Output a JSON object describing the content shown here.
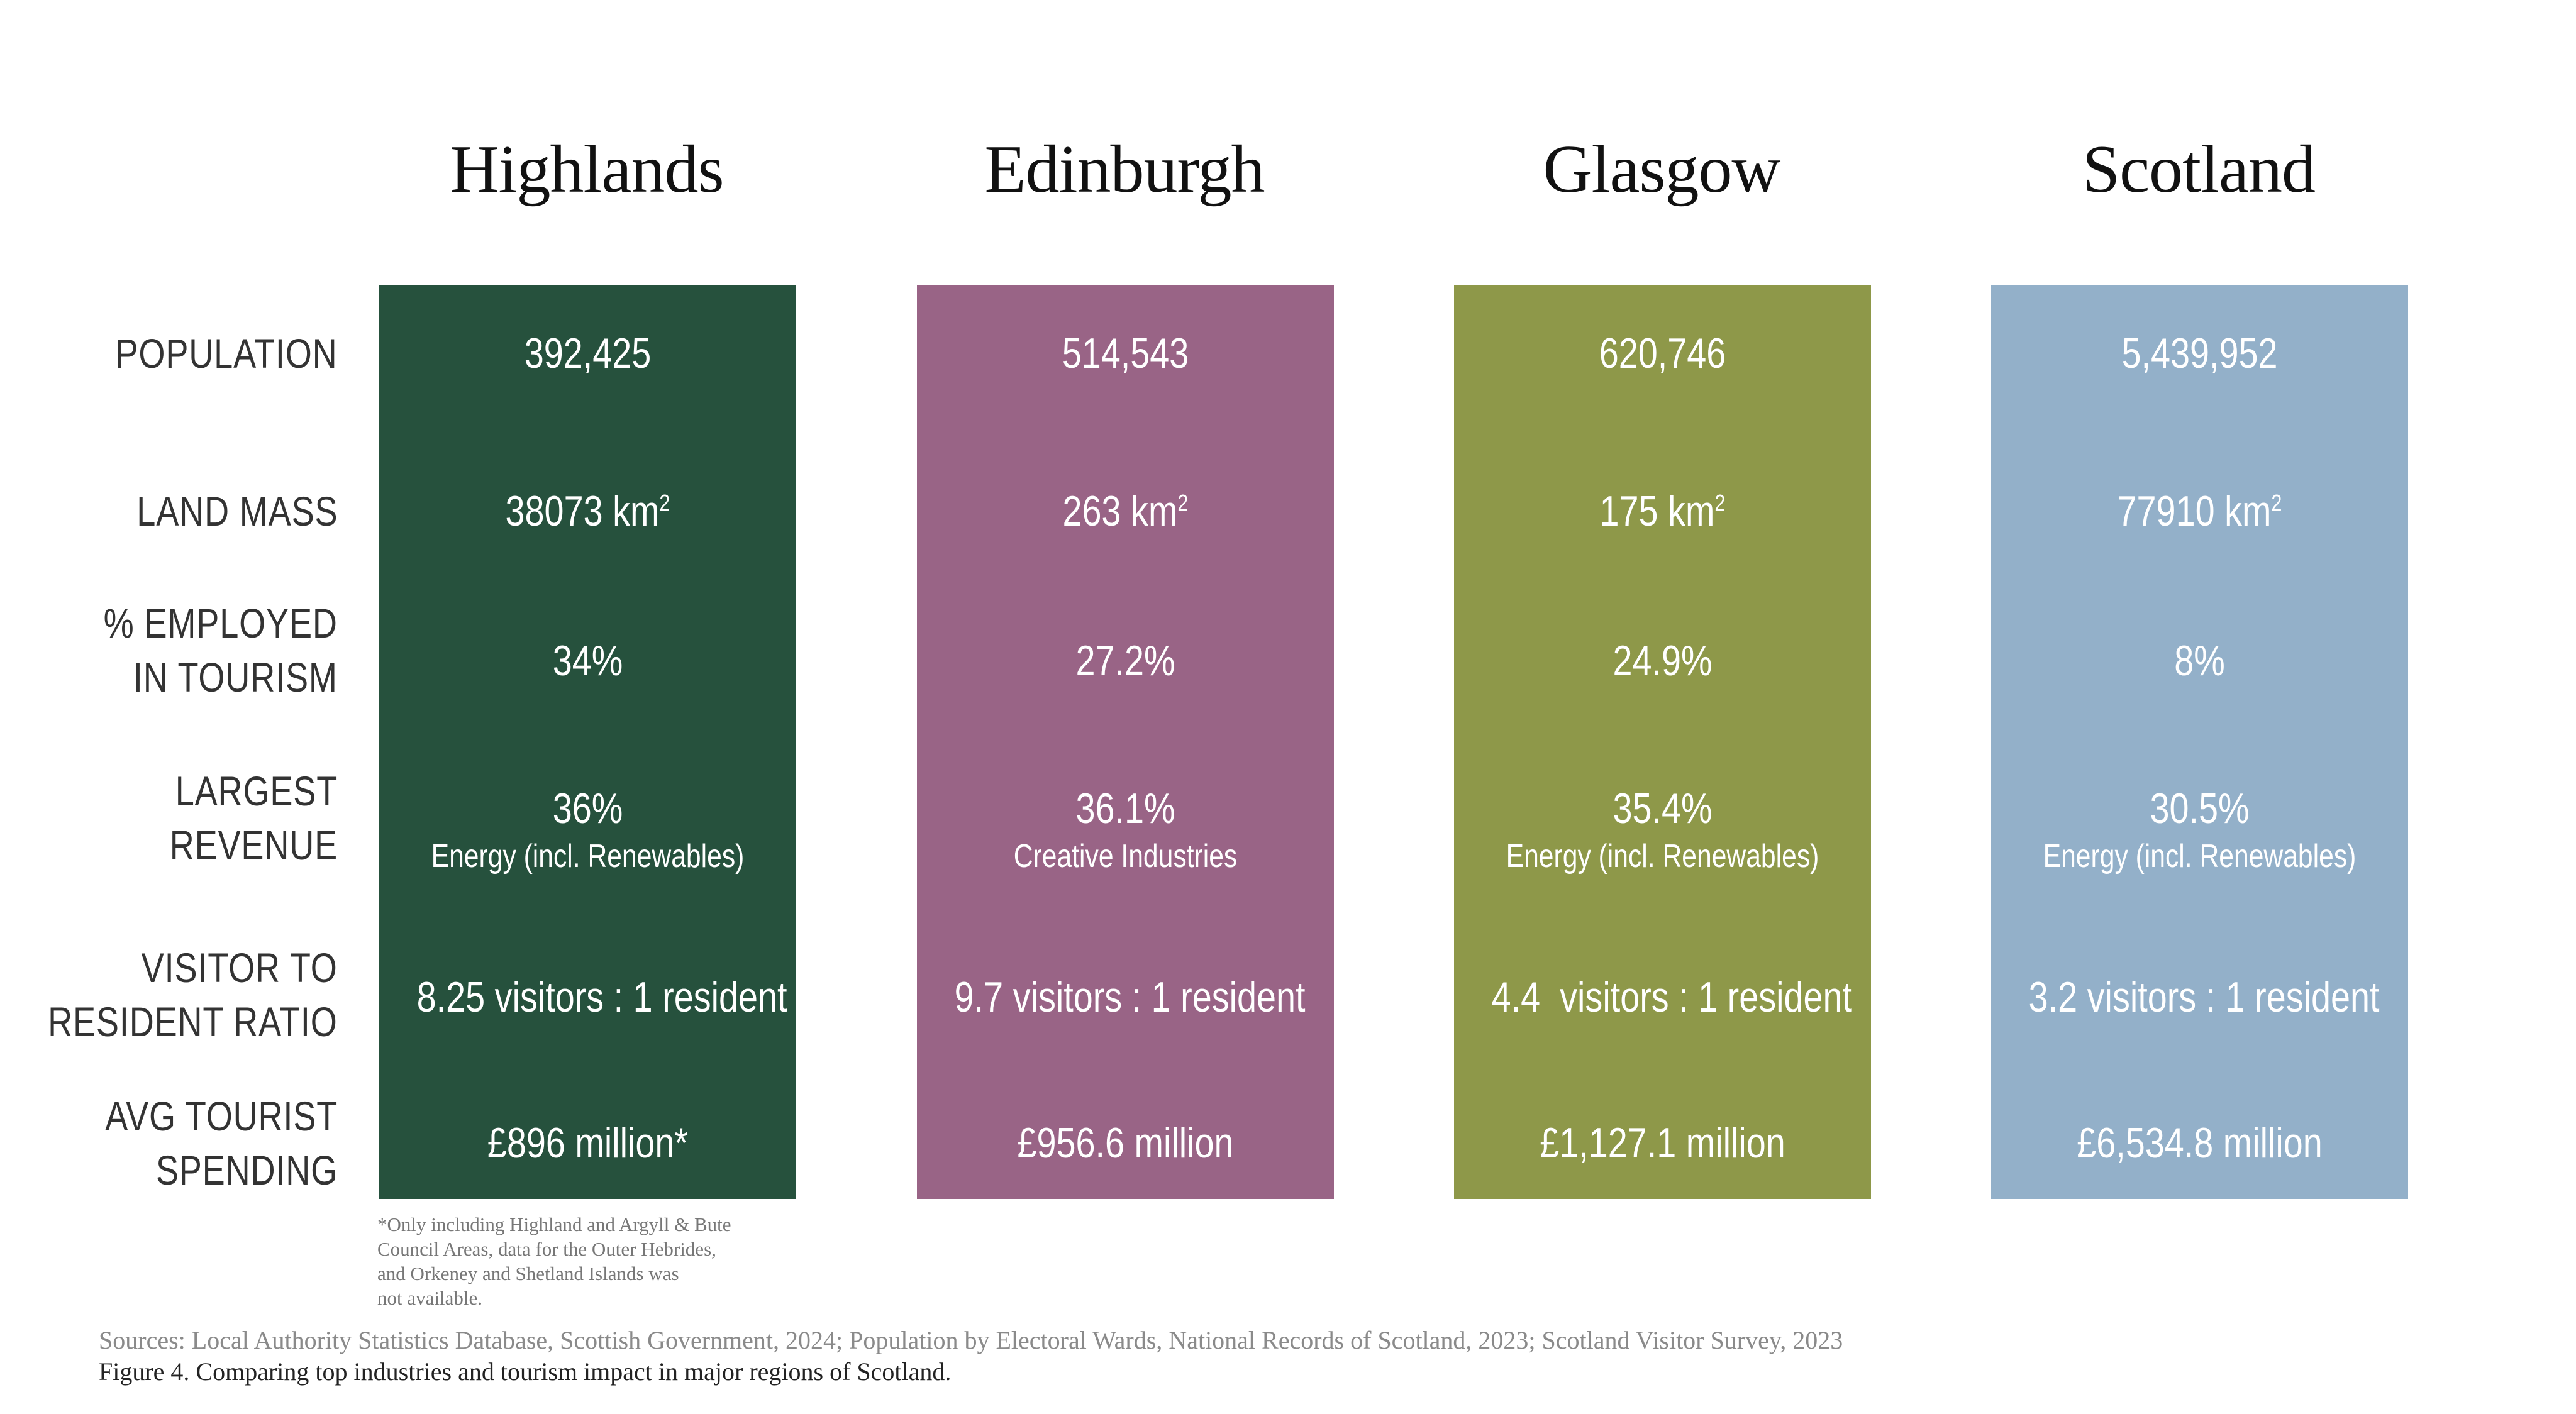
{
  "regions": [
    {
      "name": "Highlands",
      "color": "#26513D",
      "population": "392,425",
      "land_mass": "38073 km",
      "land_mass_unit_sup": "2",
      "employed_tourism": "34%",
      "largest_revenue": "36%",
      "largest_revenue_industry": "Energy (incl. Renewables)",
      "visitor_ratio": "8.25 visitors : 1 resident",
      "tourist_spending": "£896 million*"
    },
    {
      "name": "Edinburgh",
      "color": "#996486",
      "population": "514,543",
      "land_mass": "263 km",
      "land_mass_unit_sup": "2",
      "employed_tourism": "27.2%",
      "largest_revenue": "36.1%",
      "largest_revenue_industry": "Creative Industries",
      "visitor_ratio": "9.7 visitors : 1 resident",
      "tourist_spending": "£956.6 million"
    },
    {
      "name": "Glasgow",
      "color": "#8E9849",
      "population": "620,746",
      "land_mass": "175 km",
      "land_mass_unit_sup": "2",
      "employed_tourism": "24.9%",
      "largest_revenue": "35.4%",
      "largest_revenue_industry": "Energy (incl. Renewables)",
      "visitor_ratio": "4.4  visitors : 1 resident",
      "tourist_spending": "£1,127.1 million"
    },
    {
      "name": "Scotland",
      "color": "#93B0C9",
      "population": "5,439,952",
      "land_mass": "77910 km",
      "land_mass_unit_sup": "2",
      "employed_tourism": "8%",
      "largest_revenue": "30.5%",
      "largest_revenue_industry": "Energy (incl. Renewables)",
      "visitor_ratio": "3.2 visitors : 1 resident",
      "tourist_spending": "£6,534.8 million"
    }
  ],
  "row_labels": {
    "population": "POPULATION",
    "land_mass": "LAND MASS",
    "employed_tourism_1": "% EMPLOYED",
    "employed_tourism_2": "IN TOURISM",
    "largest_revenue_1": "LARGEST",
    "largest_revenue_2": "REVENUE",
    "visitor_ratio_1": "VISITOR TO",
    "visitor_ratio_2": "RESIDENT RATIO",
    "tourist_spending_1": "AVG TOURIST",
    "tourist_spending_2": "SPENDING"
  },
  "footnote": {
    "line1": "*Only including Highland and Argyll & Bute",
    "line2": "Council Areas, data for the Outer Hebrides,",
    "line3": "and Orkeney and Shetland Islands was",
    "line4": "not available."
  },
  "sources": "Sources: Local Authority Statistics Database, Scottish Government, 2024; Population by Electoral Wards, National Records of Scotland, 2023; Scotland Visitor Survey, 2023",
  "caption": {
    "label": "Figure 4.",
    "text": " Comparing top industries and tourism impact in major regions of Scotland."
  }
}
